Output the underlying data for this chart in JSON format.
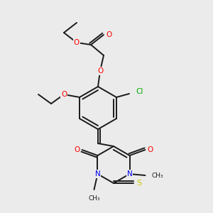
{
  "background_color": "#ebebeb",
  "bond_color": "#1a1a1a",
  "atom_colors": {
    "O": "#ff0000",
    "N": "#0000ee",
    "S": "#cccc00",
    "Cl": "#00aa00",
    "C": "#1a1a1a"
  },
  "figsize": [
    3.0,
    3.0
  ],
  "dpi": 100
}
